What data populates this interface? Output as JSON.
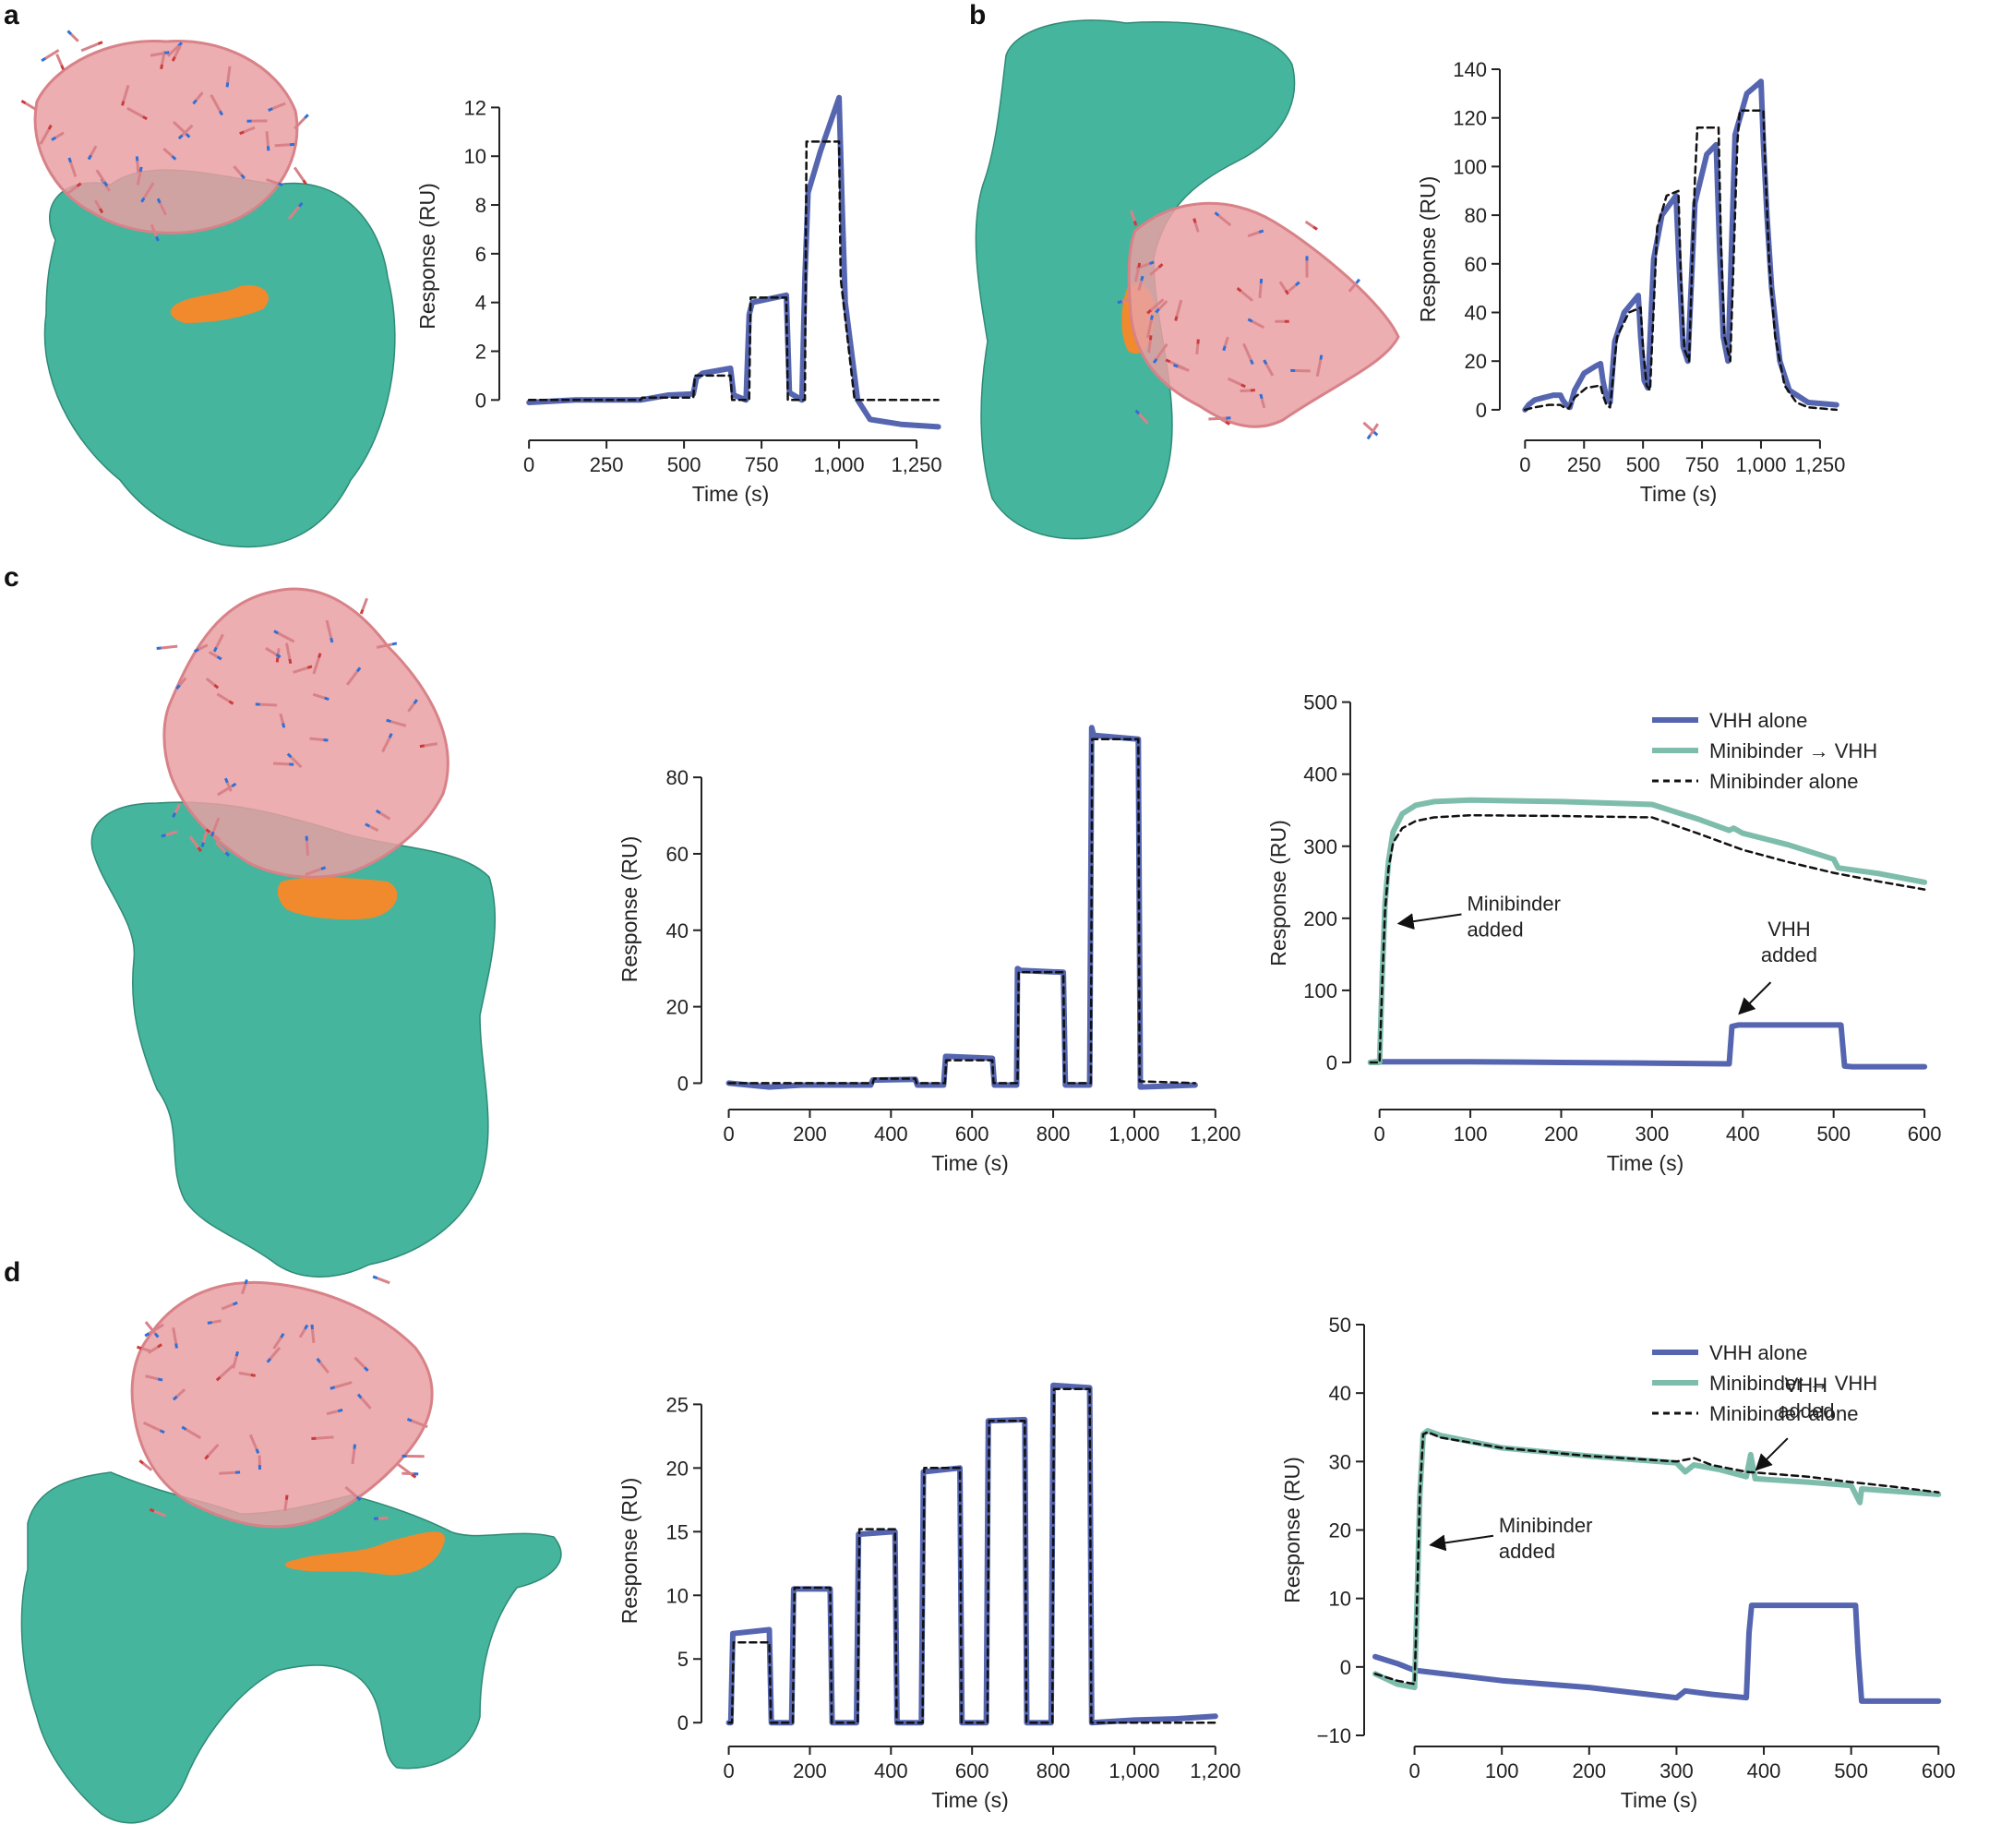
{
  "panels": [
    {
      "letter": "a"
    },
    {
      "letter": "b"
    },
    {
      "letter": "c"
    },
    {
      "letter": "d"
    }
  ],
  "colors": {
    "target_surface": "#45b59e",
    "binder_ribbon": "#e9a0a3",
    "binder_stick": "#d88288",
    "nitrogen": "#2f6fd6",
    "oxygen": "#cc3b3b",
    "epitope": "#f08a2c",
    "vhh_alone": "#5565b0",
    "minibinder_vhh": "#7ebdab",
    "fit": "#111111"
  },
  "legend_labels": {
    "vhh_alone": "VHH alone",
    "minibinder_vhh": "Minibinder → VHH",
    "minibinder_alone": "Minibinder alone"
  },
  "chart_data": [
    {
      "id": "a",
      "type": "line",
      "title": "",
      "xlabel": "Time (s)",
      "ylabel": "Response (RU)",
      "xlim": [
        -60,
        1360
      ],
      "ylim": [
        -1.2,
        13
      ],
      "xticks": [
        0,
        250,
        500,
        750,
        1000,
        1250
      ],
      "xtick_labels": [
        "0",
        "250",
        "500",
        "750",
        "1,000",
        "1,250"
      ],
      "yticks": [
        0,
        2,
        4,
        6,
        8,
        10,
        12
      ],
      "ytick_labels": [
        "0",
        "2",
        "4",
        "6",
        "8",
        "10",
        "12"
      ],
      "series": [
        {
          "name": "Measured",
          "style": "solid",
          "color": "#5565b0",
          "x": [
            0,
            150,
            360,
            450,
            530,
            540,
            560,
            650,
            660,
            700,
            710,
            720,
            830,
            840,
            880,
            890,
            900,
            940,
            1000,
            1010,
            1020,
            1060,
            1100,
            1200,
            1320
          ],
          "y": [
            -0.1,
            0.0,
            0.0,
            0.2,
            0.25,
            0.9,
            1.1,
            1.3,
            0.2,
            0.0,
            3.5,
            4.0,
            4.3,
            0.3,
            0.0,
            5.0,
            8.5,
            10.2,
            12.4,
            8.0,
            4.0,
            0.0,
            -0.8,
            -1.0,
            -1.1
          ]
        },
        {
          "name": "Fit",
          "style": "dashed",
          "color": "#111111",
          "x": [
            0,
            360,
            365,
            530,
            535,
            650,
            655,
            710,
            715,
            830,
            835,
            890,
            895,
            1000,
            1005,
            1050,
            1320
          ],
          "y": [
            0,
            0,
            0.1,
            0.1,
            1.0,
            1.0,
            0.0,
            0.0,
            4.2,
            4.2,
            0.0,
            0.0,
            10.6,
            10.6,
            5.0,
            0.0,
            0.0
          ]
        }
      ]
    },
    {
      "id": "b",
      "type": "line",
      "title": "",
      "xlabel": "Time (s)",
      "ylabel": "Response (RU)",
      "xlim": [
        -60,
        1360
      ],
      "ylim": [
        -8,
        140
      ],
      "xticks": [
        0,
        250,
        500,
        750,
        1000,
        1250
      ],
      "xtick_labels": [
        "0",
        "250",
        "500",
        "750",
        "1,000",
        "1,250"
      ],
      "yticks": [
        0,
        20,
        40,
        60,
        80,
        100,
        120,
        140
      ],
      "ytick_labels": [
        "0",
        "20",
        "40",
        "60",
        "80",
        "100",
        "120",
        "140"
      ],
      "series": [
        {
          "name": "Measured",
          "style": "solid",
          "color": "#5565b0",
          "x": [
            0,
            15,
            40,
            80,
            120,
            150,
            160,
            175,
            190,
            210,
            250,
            300,
            320,
            330,
            345,
            360,
            380,
            420,
            480,
            490,
            505,
            520,
            545,
            580,
            640,
            655,
            670,
            690,
            720,
            770,
            810,
            825,
            840,
            860,
            890,
            940,
            1000,
            1010,
            1025,
            1045,
            1080,
            1120,
            1200,
            1320
          ],
          "y": [
            0,
            2,
            4,
            5,
            6,
            6,
            4,
            2,
            1,
            8,
            15,
            18,
            19,
            12,
            5,
            3,
            28,
            40,
            47,
            30,
            12,
            9,
            62,
            80,
            88,
            55,
            26,
            20,
            85,
            105,
            109,
            65,
            30,
            20,
            113,
            130,
            135,
            110,
            80,
            50,
            20,
            8,
            3,
            2
          ]
        },
        {
          "name": "Fit",
          "style": "dashed",
          "color": "#111111",
          "x": [
            0,
            40,
            100,
            150,
            165,
            185,
            210,
            260,
            320,
            330,
            345,
            360,
            390,
            440,
            490,
            500,
            515,
            530,
            560,
            600,
            650,
            660,
            675,
            695,
            720,
            730,
            820,
            830,
            845,
            870,
            900,
            910,
            1010,
            1020,
            1035,
            1060,
            1100,
            1150,
            1200,
            1320
          ],
          "y": [
            0,
            1,
            2,
            2,
            1,
            0.5,
            5,
            9,
            10,
            6,
            2,
            1,
            30,
            40,
            42,
            25,
            10,
            8,
            75,
            88,
            90,
            55,
            25,
            20,
            95,
            116,
            116,
            70,
            30,
            20,
            110,
            123,
            123,
            95,
            60,
            30,
            10,
            3,
            1,
            0
          ]
        }
      ]
    },
    {
      "id": "c-kinetics",
      "type": "line",
      "title": "",
      "xlabel": "Time (s)",
      "ylabel": "Response (RU)",
      "xlim": [
        -40,
        1230
      ],
      "ylim": [
        -4,
        95
      ],
      "xticks": [
        0,
        200,
        400,
        600,
        800,
        1000,
        1200
      ],
      "xtick_labels": [
        "0",
        "200",
        "400",
        "600",
        "800",
        "1,000",
        "1,200"
      ],
      "yticks": [
        0,
        20,
        40,
        60,
        80
      ],
      "ytick_labels": [
        "0",
        "20",
        "40",
        "60",
        "80"
      ],
      "series": [
        {
          "name": "Measured",
          "style": "solid",
          "color": "#5565b0",
          "x": [
            0,
            100,
            180,
            350,
            355,
            460,
            465,
            530,
            535,
            650,
            655,
            710,
            712,
            720,
            825,
            830,
            890,
            895,
            900,
            1010,
            1015,
            1150
          ],
          "y": [
            0,
            -1,
            -0.5,
            -0.5,
            0.8,
            1.0,
            -0.5,
            -0.5,
            7,
            6.5,
            -0.5,
            -0.5,
            30,
            29.5,
            29,
            -0.5,
            -0.5,
            93,
            91,
            90,
            -1,
            -0.5
          ]
        },
        {
          "name": "Fit",
          "style": "dashed",
          "color": "#111111",
          "x": [
            0,
            355,
            358,
            460,
            463,
            533,
            536,
            650,
            653,
            712,
            715,
            825,
            828,
            893,
            896,
            1010,
            1013,
            1150
          ],
          "y": [
            0,
            0,
            1.2,
            1.2,
            0,
            0,
            6,
            6,
            0,
            0,
            29,
            29,
            0,
            0,
            90,
            90,
            0.5,
            0
          ]
        }
      ]
    },
    {
      "id": "c-competition",
      "type": "line",
      "title": "",
      "xlabel": "Time (s)",
      "ylabel": "Response (RU)",
      "xlim": [
        -20,
        605
      ],
      "ylim": [
        -50,
        520
      ],
      "xticks": [
        0,
        100,
        200,
        300,
        400,
        500,
        600
      ],
      "xtick_labels": [
        "0",
        "100",
        "200",
        "300",
        "400",
        "500",
        "600"
      ],
      "yticks": [
        0,
        100,
        200,
        300,
        400,
        500
      ],
      "ytick_labels": [
        "0",
        "100",
        "200",
        "300",
        "400",
        "500"
      ],
      "legend": "top-right",
      "annotations": [
        {
          "line1": "Minibinder",
          "line2": "added",
          "x": 15,
          "y": 185
        },
        {
          "line1": "VHH",
          "line2": "added",
          "x": 390,
          "y": 60
        }
      ],
      "series": [
        {
          "name": "VHH alone",
          "style": "solid",
          "color": "#5565b0",
          "x": [
            -10,
            0,
            100,
            200,
            300,
            385,
            388,
            395,
            450,
            508,
            512,
            520,
            600
          ],
          "y": [
            0,
            1,
            1,
            0,
            -1,
            -2,
            50,
            52,
            52,
            52,
            -5,
            -6,
            -6
          ]
        },
        {
          "name": "Minibinder → VHH",
          "style": "solid",
          "color": "#7ebdab",
          "x": [
            -10,
            0,
            3,
            6,
            10,
            15,
            25,
            40,
            60,
            100,
            200,
            300,
            350,
            385,
            390,
            400,
            450,
            500,
            505,
            550,
            600
          ],
          "y": [
            0,
            0,
            120,
            220,
            280,
            320,
            345,
            357,
            362,
            364,
            362,
            358,
            338,
            322,
            325,
            318,
            302,
            282,
            270,
            262,
            250
          ]
        },
        {
          "name": "Minibinder alone",
          "style": "dashed",
          "color": "#111111",
          "x": [
            -10,
            0,
            3,
            6,
            10,
            15,
            25,
            40,
            60,
            100,
            200,
            300,
            350,
            400,
            450,
            500,
            550,
            600
          ],
          "y": [
            0,
            0,
            110,
            210,
            270,
            305,
            325,
            335,
            340,
            343,
            342,
            340,
            318,
            295,
            278,
            263,
            251,
            240
          ]
        }
      ]
    },
    {
      "id": "d-kinetics",
      "type": "line",
      "title": "",
      "xlabel": "Time (s)",
      "ylabel": "Response (RU)",
      "xlim": [
        -40,
        1230
      ],
      "ylim": [
        -1,
        28
      ],
      "xticks": [
        0,
        200,
        400,
        600,
        800,
        1000,
        1200
      ],
      "xtick_labels": [
        "0",
        "200",
        "400",
        "600",
        "800",
        "1,000",
        "1,200"
      ],
      "yticks": [
        0,
        5,
        10,
        15,
        20,
        25
      ],
      "ytick_labels": [
        "0",
        "5",
        "10",
        "15",
        "20",
        "25"
      ],
      "series": [
        {
          "name": "Measured",
          "style": "solid",
          "color": "#5565b0",
          "x": [
            0,
            5,
            10,
            100,
            105,
            150,
            155,
            160,
            250,
            255,
            310,
            315,
            320,
            410,
            415,
            470,
            475,
            480,
            570,
            575,
            630,
            635,
            640,
            730,
            735,
            790,
            795,
            800,
            890,
            895,
            1000,
            1100,
            1200
          ],
          "y": [
            0,
            0,
            7,
            7.3,
            0,
            0,
            0,
            10.5,
            10.5,
            0,
            0,
            0,
            14.8,
            15,
            0,
            0,
            0,
            19.7,
            20,
            0,
            0,
            0,
            23.7,
            23.8,
            0,
            0,
            0,
            26.5,
            26.3,
            0,
            0.2,
            0.3,
            0.5
          ]
        },
        {
          "name": "Fit",
          "style": "dashed",
          "color": "#111111",
          "x": [
            0,
            8,
            12,
            100,
            104,
            158,
            162,
            250,
            254,
            318,
            322,
            410,
            414,
            478,
            482,
            570,
            574,
            638,
            642,
            730,
            734,
            798,
            802,
            890,
            894,
            1200
          ],
          "y": [
            0,
            0,
            6.3,
            6.3,
            0,
            0,
            10.6,
            10.6,
            0,
            0,
            15.2,
            15.2,
            0,
            0,
            20,
            20,
            0,
            0,
            23.7,
            23.7,
            0,
            0,
            26.2,
            26.2,
            0,
            0
          ]
        }
      ]
    },
    {
      "id": "d-competition",
      "type": "line",
      "title": "",
      "xlabel": "Time (s)",
      "ylabel": "Response (RU)",
      "xlim": [
        -45,
        605
      ],
      "ylim": [
        -10,
        50
      ],
      "xticks": [
        0,
        100,
        200,
        300,
        400,
        500,
        600
      ],
      "xtick_labels": [
        "0",
        "100",
        "200",
        "300",
        "400",
        "500",
        "600"
      ],
      "yticks": [
        -10,
        0,
        10,
        20,
        30,
        40,
        50
      ],
      "ytick_labels": [
        "−10",
        "0",
        "10",
        "20",
        "30",
        "40",
        "50"
      ],
      "legend": "top-right",
      "annotations": [
        {
          "line1": "Minibinder",
          "line2": "added",
          "x": 12,
          "y": 17
        },
        {
          "line1": "VHH",
          "line2": "added",
          "x": 385,
          "y": 28
        }
      ],
      "series": [
        {
          "name": "VHH alone",
          "style": "solid",
          "color": "#5565b0",
          "x": [
            -45,
            -20,
            0,
            100,
            200,
            300,
            310,
            340,
            380,
            383,
            386,
            400,
            450,
            505,
            508,
            512,
            600
          ],
          "y": [
            1.5,
            0.5,
            -0.5,
            -2,
            -3,
            -4.5,
            -3.5,
            -4,
            -4.5,
            5,
            9,
            9,
            9,
            9,
            2,
            -5,
            -5
          ]
        },
        {
          "name": "Minibinder → VHH",
          "style": "solid",
          "color": "#7ebdab",
          "x": [
            -45,
            -20,
            0,
            3,
            6,
            10,
            15,
            30,
            100,
            200,
            300,
            310,
            320,
            350,
            380,
            385,
            390,
            450,
            500,
            510,
            512,
            600
          ],
          "y": [
            -1,
            -2.5,
            -3,
            10,
            25,
            34,
            34.5,
            33.8,
            32,
            30.8,
            29.8,
            28.5,
            29.5,
            28.8,
            27.8,
            31,
            27.5,
            27,
            26.5,
            24,
            26,
            25.2
          ]
        },
        {
          "name": "Minibinder alone",
          "style": "dashed",
          "color": "#111111",
          "x": [
            -45,
            -20,
            0,
            3,
            6,
            10,
            15,
            30,
            100,
            200,
            300,
            320,
            340,
            380,
            450,
            500,
            550,
            600
          ],
          "y": [
            -1,
            -2,
            -2.5,
            10,
            25,
            34,
            34.3,
            33.5,
            32,
            30.8,
            30,
            30.5,
            29.5,
            28.5,
            27.8,
            27,
            26.3,
            25.5
          ]
        }
      ]
    }
  ]
}
